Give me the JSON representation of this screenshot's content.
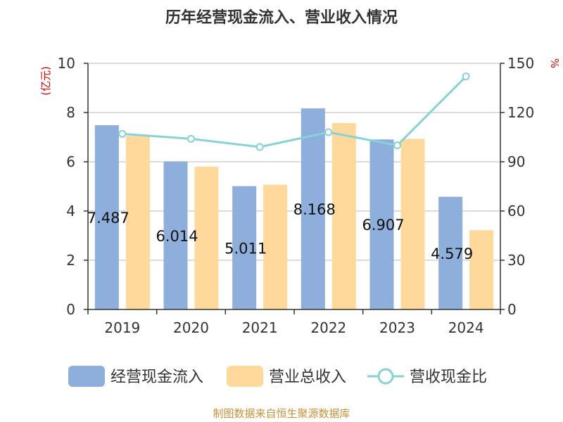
{
  "chart_data": {
    "type": "bar",
    "title": "历年经营现金流入、营业收入情况",
    "categories": [
      "2019",
      "2020",
      "2021",
      "2022",
      "2023",
      "2024"
    ],
    "series": [
      {
        "name": "经营现金流入",
        "type": "bar",
        "axis": "left",
        "color": "#8eaedb",
        "values": [
          7.487,
          6.014,
          5.011,
          8.168,
          6.907,
          4.579
        ]
      },
      {
        "name": "营业总收入",
        "type": "bar",
        "axis": "left",
        "color": "#fed99b",
        "values": [
          7.05,
          5.8,
          5.07,
          7.57,
          6.93,
          3.22
        ]
      },
      {
        "name": "营收现金比",
        "type": "line",
        "axis": "right",
        "color": "#86d2d5",
        "values": [
          107,
          104,
          99,
          108,
          100,
          142
        ]
      }
    ],
    "data_labels": [
      "7.487",
      "6.014",
      "5.011",
      "8.168",
      "6.907",
      "4.579"
    ],
    "y_left": {
      "label": "(亿元)",
      "ylim": [
        0,
        10
      ],
      "ticks": [
        "0",
        "2",
        "4",
        "6",
        "8",
        "10"
      ]
    },
    "y_right": {
      "label": "%",
      "ylim": [
        0,
        150
      ],
      "ticks": [
        "0",
        "30",
        "60",
        "90",
        "120",
        "150"
      ]
    },
    "grid": true,
    "legend_position": "bottom",
    "source": "制图数据来自恒生聚源数据库"
  }
}
